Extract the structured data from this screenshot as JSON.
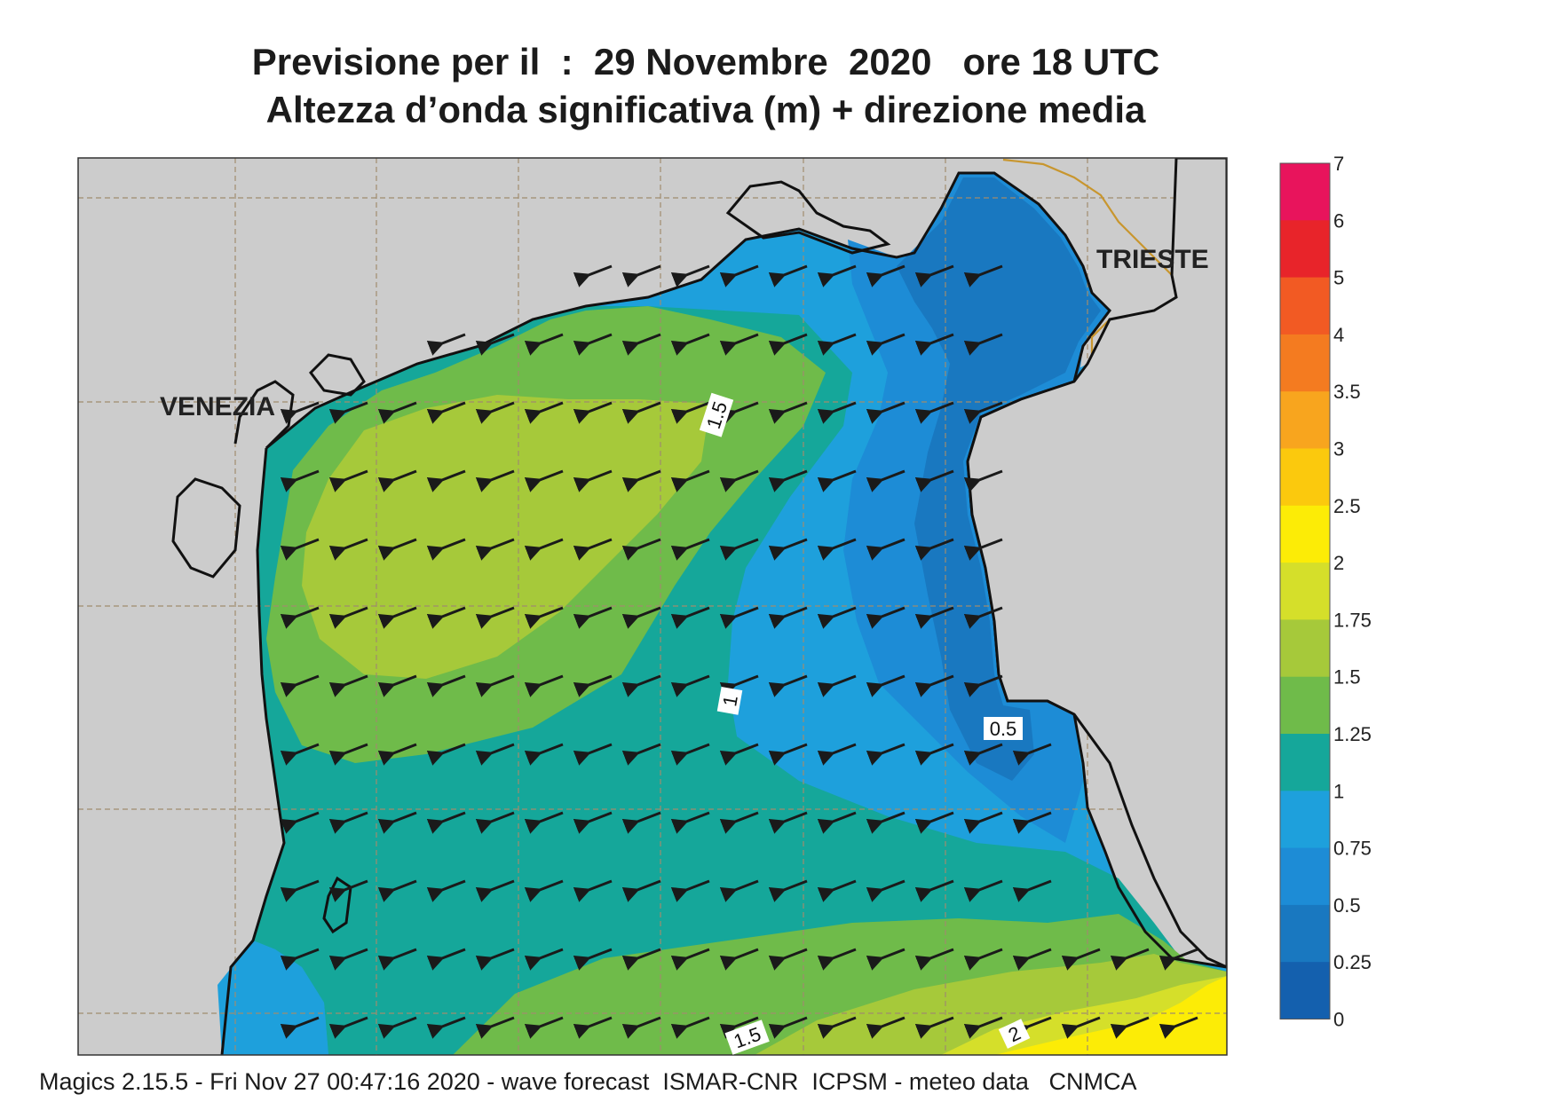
{
  "title": {
    "line1": "Previsione per il  :  29 Novembre  2020   ore 18 UTC",
    "line2": "Altezza d’onda significativa (m) + direzione media"
  },
  "map": {
    "place_labels": [
      "VENEZIA",
      "TRIESTE"
    ],
    "contour_labels": [
      "1.5",
      "1",
      "0.5",
      "1.5",
      "2"
    ],
    "arrow_direction": "west-southwest",
    "colors": {
      "land": "#cccccc",
      "grid": "#a08c6e",
      "coast": "#111111",
      "border": "#c8962e"
    }
  },
  "legend": {
    "ticks": [
      "7",
      "6",
      "5",
      "4",
      "3.5",
      "3",
      "2.5",
      "2",
      "1.75",
      "1.5",
      "1.25",
      "1",
      "0.75",
      "0.5",
      "0.25",
      "0"
    ],
    "colors": [
      "#e8145c",
      "#e8242a",
      "#f25a23",
      "#f47b20",
      "#f8a51e",
      "#fbc90d",
      "#fcec06",
      "#d5df2a",
      "#a6c93a",
      "#6fbb4a",
      "#15a79a",
      "#1ea0dc",
      "#1d8cd6",
      "#1978c0",
      "#1460ae"
    ]
  },
  "footer": "Magics 2.15.5 - Fri Nov 27 00:47:16 2020 - wave forecast  ISMAR-CNR  ICPSM - meteo data   CNMCA"
}
